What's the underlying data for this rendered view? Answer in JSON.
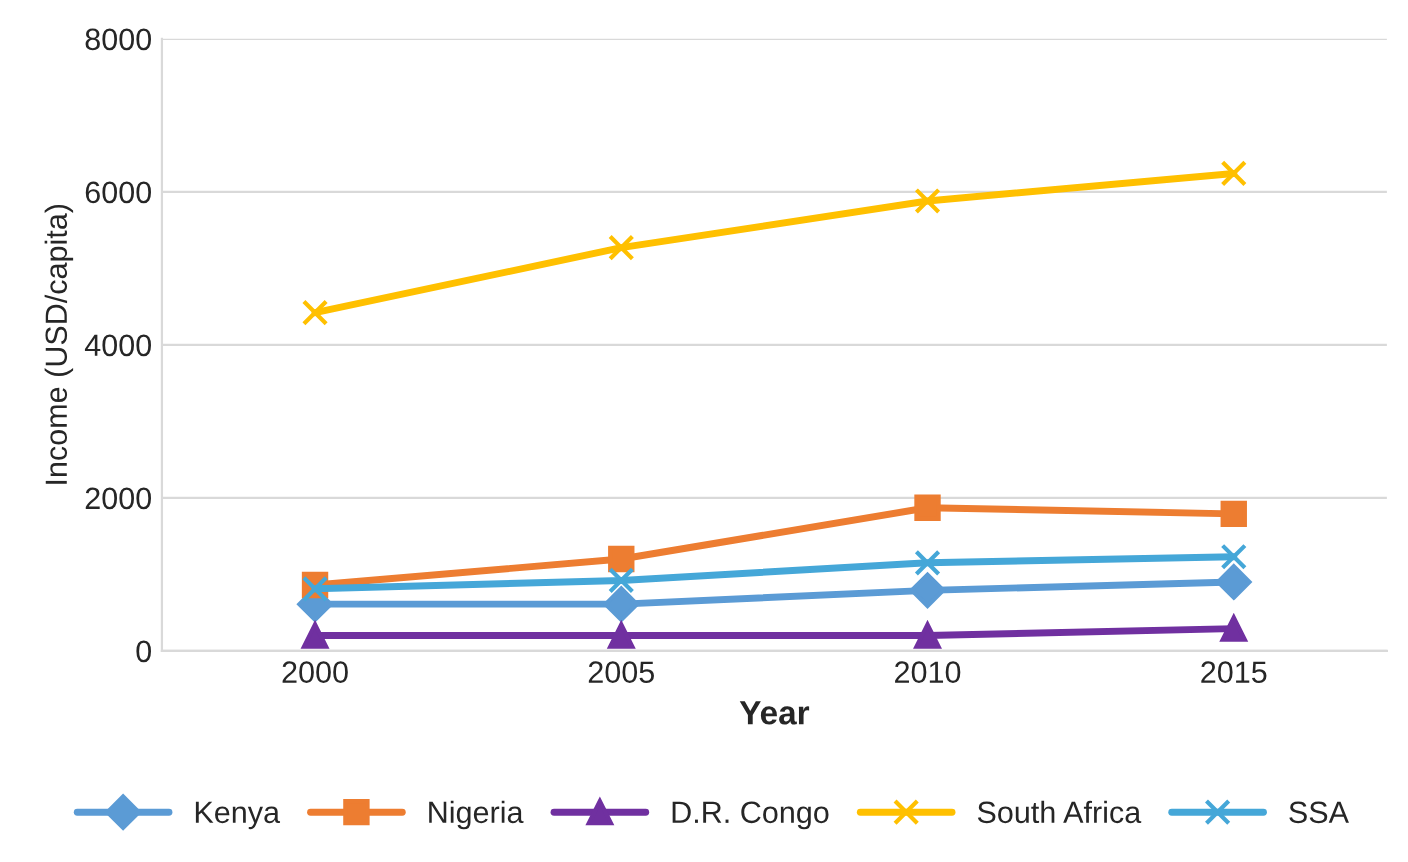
{
  "chart_data": {
    "type": "line",
    "xlabel": "Year",
    "ylabel": "Income (USD/capita)",
    "categories": [
      "2000",
      "2005",
      "2010",
      "2015"
    ],
    "series": [
      {
        "name": "Kenya",
        "color": "#5b9bd5",
        "marker": "diamond",
        "values": [
          610,
          610,
          790,
          900
        ]
      },
      {
        "name": "Nigeria",
        "color": "#ed7d31",
        "marker": "square",
        "values": [
          860,
          1200,
          1870,
          1790
        ]
      },
      {
        "name": "D.R. Congo",
        "color": "#7030a0",
        "marker": "triangle",
        "values": [
          200,
          200,
          200,
          290
        ]
      },
      {
        "name": "South Africa",
        "color": "#ffc000",
        "marker": "cross",
        "values": [
          4420,
          5270,
          5880,
          6240
        ]
      },
      {
        "name": "SSA",
        "color": "#45a7d8",
        "marker": "cross",
        "values": [
          810,
          920,
          1150,
          1230
        ]
      }
    ],
    "ylim": [
      0,
      8000
    ],
    "yticks": [
      0,
      2000,
      4000,
      6000,
      8000
    ],
    "grid": "y",
    "legend": "bottom"
  }
}
